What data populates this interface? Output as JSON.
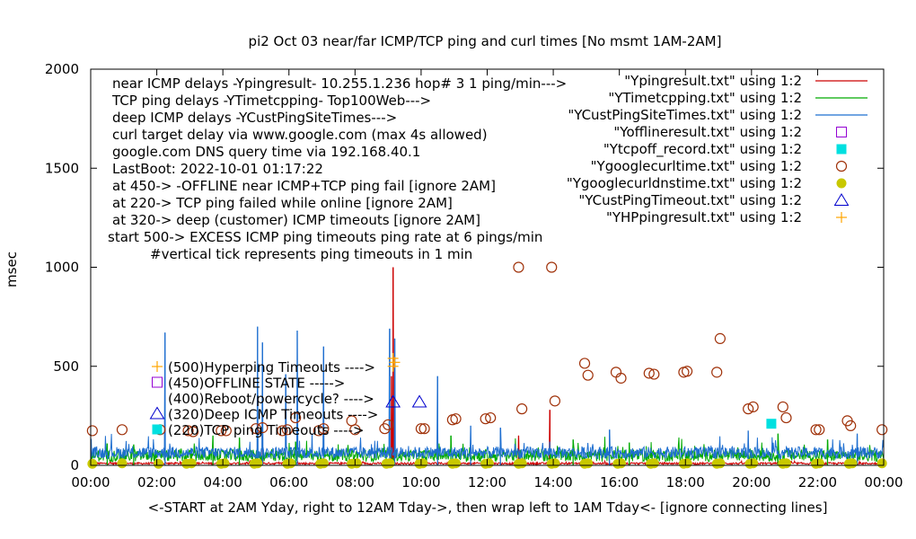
{
  "chart_data": {
    "type": "line",
    "title": "pi2  Oct 03  near/far ICMP/TCP ping and curl times [No msmt 1AM-2AM]",
    "xlabel": "<-START at 2AM Yday, right to 12AM Tday->, then wrap left to 1AM Tday<- [ignore connecting lines]",
    "ylabel": "msec",
    "xlim": [
      0,
      24
    ],
    "ylim": [
      0,
      2000
    ],
    "grid": false,
    "x_ticks": [
      {
        "v": 0,
        "label": "00:00"
      },
      {
        "v": 2,
        "label": "02:00"
      },
      {
        "v": 4,
        "label": "04:00"
      },
      {
        "v": 6,
        "label": "06:00"
      },
      {
        "v": 8,
        "label": "08:00"
      },
      {
        "v": 10,
        "label": "10:00"
      },
      {
        "v": 12,
        "label": "12:00"
      },
      {
        "v": 14,
        "label": "14:00"
      },
      {
        "v": 16,
        "label": "16:00"
      },
      {
        "v": 18,
        "label": "18:00"
      },
      {
        "v": 20,
        "label": "20:00"
      },
      {
        "v": 22,
        "label": "22:00"
      },
      {
        "v": 24,
        "label": "00:00"
      }
    ],
    "y_ticks": [
      {
        "v": 0,
        "label": "0"
      },
      {
        "v": 500,
        "label": "500"
      },
      {
        "v": 1000,
        "label": "1000"
      },
      {
        "v": 1500,
        "label": "1500"
      },
      {
        "v": 2000,
        "label": "2000"
      }
    ],
    "info_lines": [
      "near ICMP delays -Ypingresult- 10.255.1.236 hop# 3 1 ping/min--->",
      "TCP ping delays -YTimetcpping- Top100Web--->",
      "deep ICMP delays -YCustPingSiteTimes--->",
      "curl target delay via www.google.com (max 4s allowed)",
      "google.com DNS query time via 192.168.40.1",
      "LastBoot: 2022-10-01 01:17:22",
      "at 450-> -OFFLINE near ICMP+TCP ping fail [ignore 2AM]",
      "at 220-> TCP ping failed while online [ignore 2AM]",
      "at 320-> deep (customer) ICMP timeouts [ignore 2AM]",
      "start 500-> EXCESS ICMP ping timeouts ping rate at 6 pings/min",
      "#vertical tick represents ping timeouts in 1 min"
    ],
    "annotations": [
      {
        "label": "(500)Hyperping Timeouts ---->",
        "marker": "plus",
        "color": "#ffa500"
      },
      {
        "label": "(450)OFFLINE STATE ----->",
        "marker": "square-open",
        "color": "#9400d3"
      },
      {
        "label": "(400)Reboot/powercycle? ---->",
        "marker": "none",
        "color": "#000000"
      },
      {
        "label": "(320)Deep ICMP Timeouts ---->",
        "marker": "triangle-open",
        "color": "#0000cd"
      },
      {
        "label": "(220)TCP ping Timeouts ---->",
        "marker": "square-filled",
        "color": "#00e0e0"
      }
    ],
    "legend_position": "top-right",
    "series": [
      {
        "name": "\"Ypingresult.txt\" using 1:2",
        "style": "line",
        "color": "#cc0000",
        "baseline": 8,
        "noise": 10,
        "spikes": [
          [
            9.15,
            1000
          ],
          [
            9.1,
            450
          ],
          [
            13.9,
            280
          ],
          [
            12.95,
            150
          ],
          [
            5.2,
            120
          ]
        ]
      },
      {
        "name": "\"YTimetcpping.txt\" using 1:2",
        "style": "line",
        "color": "#00aa00",
        "baseline": 40,
        "noise": 60,
        "spikes": [
          [
            0.5,
            110
          ],
          [
            1.3,
            105
          ],
          [
            3.7,
            150
          ],
          [
            4.5,
            140
          ],
          [
            6.2,
            120
          ],
          [
            10.9,
            150
          ],
          [
            14.6,
            130
          ],
          [
            16.3,
            115
          ],
          [
            20.8,
            160
          ],
          [
            22.3,
            130
          ]
        ]
      },
      {
        "name": "\"YCustPingSiteTimes.txt\" using 1:2",
        "style": "line",
        "color": "#1f6fd0",
        "baseline": 55,
        "noise": 60,
        "spikes": [
          [
            2.25,
            670
          ],
          [
            5.05,
            700
          ],
          [
            5.2,
            620
          ],
          [
            5.9,
            460
          ],
          [
            6.25,
            680
          ],
          [
            7.05,
            600
          ],
          [
            9.05,
            690
          ],
          [
            9.2,
            640
          ],
          [
            10.5,
            450
          ],
          [
            11.5,
            200
          ],
          [
            12.4,
            190
          ],
          [
            15.7,
            180
          ],
          [
            19.9,
            175
          ],
          [
            23.2,
            160
          ]
        ]
      },
      {
        "name": "\"Yofflineresult.txt\" using 1:2",
        "style": "marker",
        "marker": "square-open",
        "color": "#9400d3",
        "x": [],
        "y": []
      },
      {
        "name": "\"Ytcpoff_record.txt\" using 1:2",
        "style": "marker",
        "marker": "square-filled",
        "color": "#00e0e0",
        "x": [
          20.6
        ],
        "y": [
          210
        ]
      },
      {
        "name": "\"Ygooglecurltime.txt\" using 1:2",
        "style": "marker",
        "marker": "circle-open",
        "color": "#a0320a",
        "x": [
          0.05,
          0.95,
          2.1,
          2.95,
          3.1,
          3.95,
          4.1,
          5.0,
          5.2,
          5.8,
          5.95,
          6.2,
          6.9,
          7.05,
          7.9,
          8.0,
          8.9,
          9.0,
          10.0,
          10.1,
          10.95,
          11.05,
          11.95,
          12.1,
          12.95,
          13.05,
          13.95,
          14.05,
          14.95,
          15.05,
          15.9,
          16.05,
          16.9,
          17.05,
          17.95,
          18.05,
          18.95,
          19.05,
          19.9,
          20.05,
          20.95,
          21.05,
          21.95,
          22.05,
          22.9,
          23.0,
          23.95
        ],
        "y": [
          175,
          180,
          180,
          175,
          170,
          175,
          175,
          185,
          190,
          175,
          180,
          240,
          175,
          185,
          225,
          180,
          185,
          205,
          185,
          185,
          230,
          235,
          235,
          240,
          1000,
          285,
          1000,
          325,
          515,
          455,
          470,
          440,
          465,
          460,
          470,
          475,
          470,
          640,
          285,
          295,
          295,
          240,
          180,
          180,
          225,
          200,
          180
        ]
      },
      {
        "name": "\"Ygooglecurldnstime.txt\" using 1:2",
        "style": "marker",
        "marker": "circle-filled",
        "color": "#c8c800",
        "x": [
          0.05,
          0.95,
          2.05,
          2.9,
          3.05,
          3.95,
          4.05,
          4.95,
          5.05,
          5.95,
          6.05,
          6.95,
          7.05,
          7.9,
          8.05,
          8.95,
          9.05,
          9.95,
          10.05,
          10.95,
          11.05,
          11.95,
          12.05,
          12.95,
          13.05,
          13.95,
          14.05,
          14.95,
          15.05,
          15.95,
          16.05,
          16.95,
          17.05,
          17.95,
          18.05,
          18.95,
          19.05,
          19.95,
          20.05,
          20.95,
          21.05,
          21.95,
          22.05,
          22.95,
          23.05,
          23.95
        ],
        "y": [
          8,
          10,
          8,
          8,
          10,
          8,
          10,
          8,
          10,
          8,
          10,
          8,
          10,
          8,
          10,
          8,
          10,
          8,
          10,
          8,
          10,
          8,
          10,
          8,
          10,
          8,
          10,
          8,
          10,
          8,
          10,
          8,
          10,
          8,
          10,
          8,
          10,
          8,
          10,
          8,
          10,
          8,
          10,
          8,
          10,
          10
        ]
      },
      {
        "name": "\"YCustPingTimeout.txt\" using 1:2",
        "style": "marker",
        "marker": "triangle-open",
        "color": "#0000cd",
        "x": [
          9.15,
          9.95
        ],
        "y": [
          320,
          320
        ]
      },
      {
        "name": "\"YHPpingresult.txt\" using 1:2",
        "style": "marker",
        "marker": "plus",
        "color": "#ffa500",
        "x": [
          9.15,
          9.2,
          9.15
        ],
        "y": [
          500,
          520,
          540
        ]
      }
    ]
  }
}
